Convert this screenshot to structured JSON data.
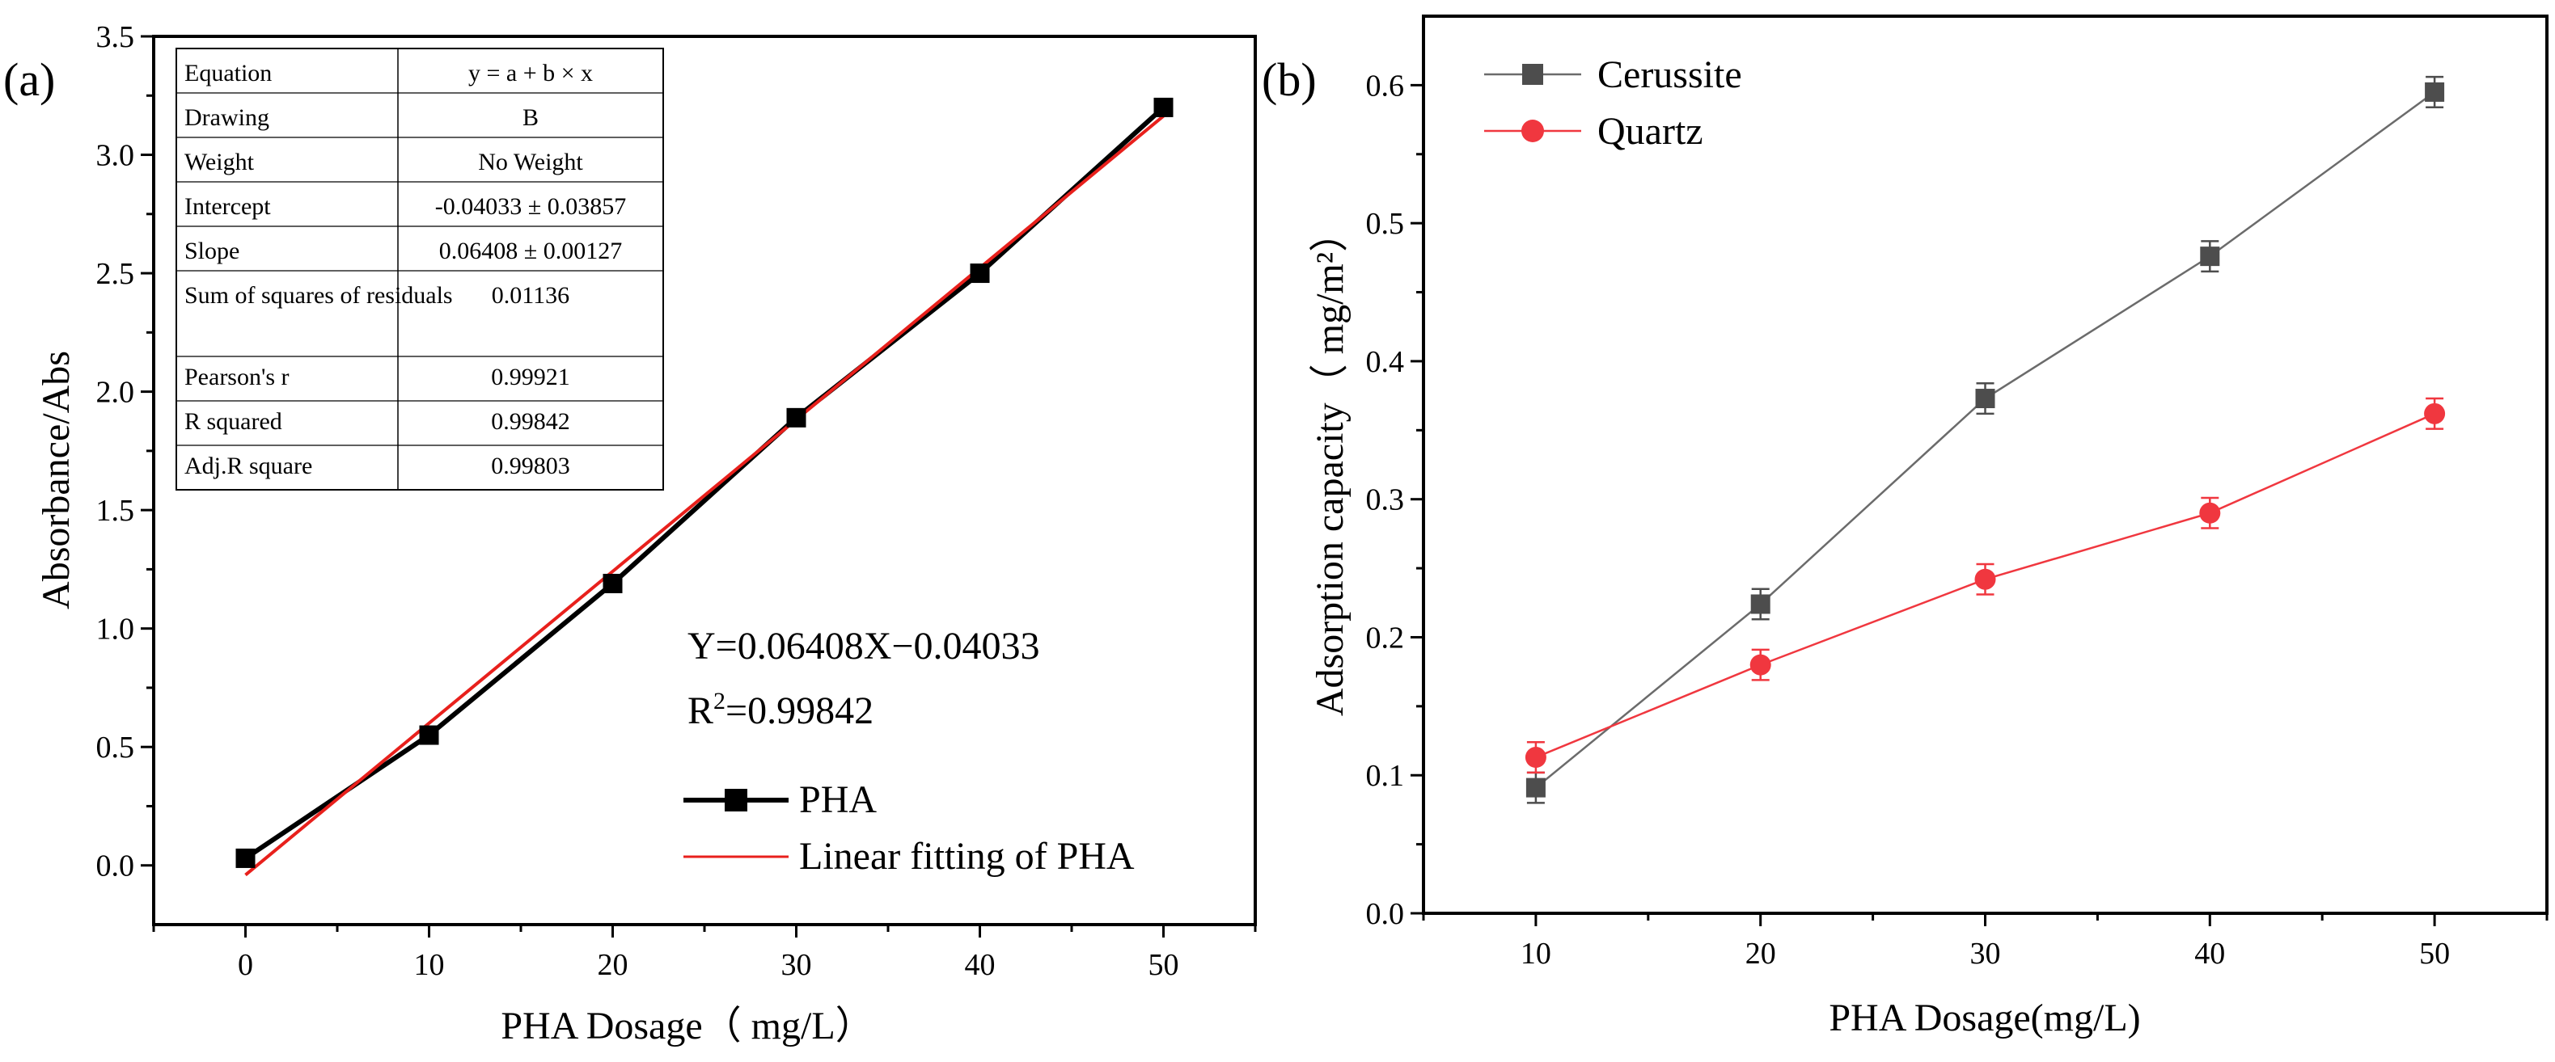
{
  "chart_data": [
    {
      "panel_label": "(a)",
      "type": "scatter",
      "xlabel": "PHA Dosage（ mg/L）",
      "ylabel": "Absorbance/Abs",
      "xlim": [
        -5,
        55
      ],
      "ylim": [
        -0.25,
        3.5
      ],
      "xticks": [
        0,
        10,
        20,
        30,
        40,
        50
      ],
      "yticks": [
        0.0,
        0.5,
        1.0,
        1.5,
        2.0,
        2.5,
        3.0,
        3.5
      ],
      "xtick_labels": [
        "0",
        "10",
        "20",
        "30",
        "40",
        "50"
      ],
      "ytick_labels": [
        "0.0",
        "0.5",
        "1.0",
        "1.5",
        "2.0",
        "2.5",
        "3.0",
        "3.5"
      ],
      "series": [
        {
          "name": "PHA",
          "color": "#000000",
          "marker": "square",
          "x": [
            0,
            10,
            20,
            30,
            40,
            50
          ],
          "y": [
            0.03,
            0.55,
            1.19,
            1.89,
            2.5,
            3.2
          ]
        },
        {
          "name": "Linear fitting of PHA",
          "color": "#e8201c",
          "marker": "none",
          "x": [
            0,
            50
          ],
          "y": [
            -0.04033,
            3.16367
          ]
        }
      ],
      "fit_table": {
        "rows": [
          [
            "Equation",
            "y = a + b × x"
          ],
          [
            "Drawing",
            "B"
          ],
          [
            "Weight",
            "No Weight"
          ],
          [
            "Intercept",
            "-0.04033 ± 0.03857"
          ],
          [
            "Slope",
            "0.06408 ± 0.00127"
          ],
          [
            "Sum of squares of residuals",
            "0.01136"
          ],
          [
            "Pearson's r",
            "0.99921"
          ],
          [
            "R squared",
            "0.99842"
          ],
          [
            "Adj.R square",
            "0.99803"
          ]
        ]
      },
      "annotation_equation": "Y=0.06408X−0.04033",
      "annotation_r_prefix": "R",
      "annotation_r_sup": "2",
      "annotation_r_value": "=0.99842",
      "legend_position": "bottom-right"
    },
    {
      "panel_label": "(b)",
      "type": "line",
      "xlabel": "PHA Dosage(mg/L)",
      "ylabel": "Adsorption capacity（ mg/m²）",
      "xlim": [
        5,
        55
      ],
      "ylim": [
        0.0,
        0.65
      ],
      "xticks": [
        10,
        20,
        30,
        40,
        50
      ],
      "yticks": [
        0.0,
        0.1,
        0.2,
        0.3,
        0.4,
        0.5,
        0.6
      ],
      "xtick_labels": [
        "10",
        "20",
        "30",
        "40",
        "50"
      ],
      "ytick_labels": [
        "0.0",
        "0.1",
        "0.2",
        "0.3",
        "0.4",
        "0.5",
        "0.6"
      ],
      "series": [
        {
          "name": "Cerussite",
          "color": "#4d4d4d",
          "marker": "square",
          "x": [
            10,
            20,
            30,
            40,
            50
          ],
          "y": [
            0.091,
            0.224,
            0.373,
            0.476,
            0.595
          ],
          "error": [
            0.011,
            0.011,
            0.011,
            0.011,
            0.011
          ]
        },
        {
          "name": "Quartz",
          "color": "#f0373f",
          "marker": "circle",
          "x": [
            10,
            20,
            30,
            40,
            50
          ],
          "y": [
            0.113,
            0.18,
            0.242,
            0.29,
            0.362
          ],
          "error": [
            0.011,
            0.011,
            0.011,
            0.011,
            0.011
          ]
        }
      ],
      "legend_position": "top-left"
    }
  ]
}
